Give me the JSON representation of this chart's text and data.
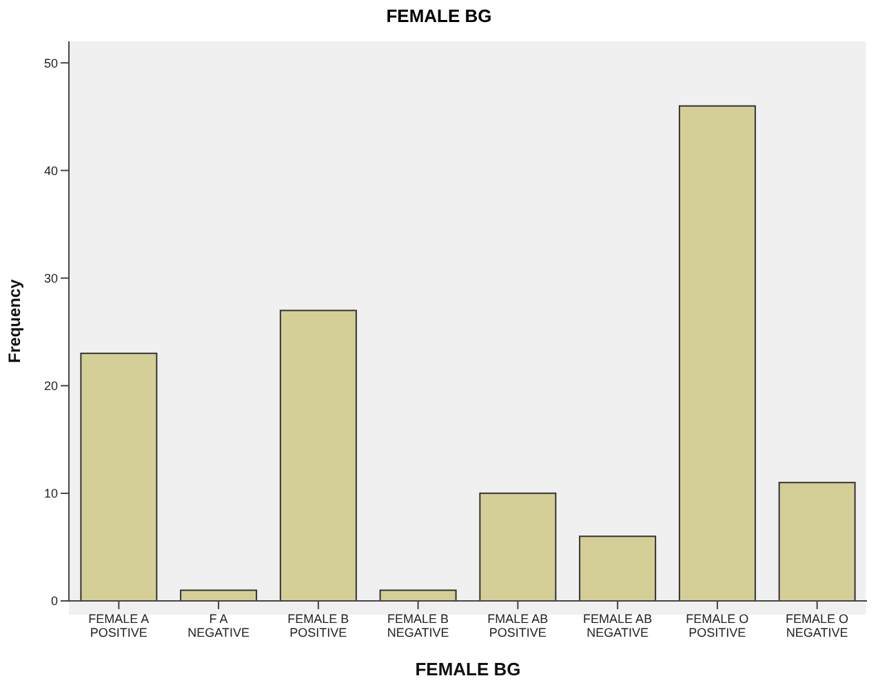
{
  "chart_data": {
    "type": "bar",
    "title": "FEMALE BG",
    "xlabel": "FEMALE BG",
    "ylabel": "Frequency",
    "categories": [
      "FEMALE A POSITIVE",
      "F A NEGATIVE",
      "FEMALE B POSITIVE",
      "FEMALE B NEGATIVE",
      "FMALE AB POSITIVE",
      "FEMALE AB NEGATIVE",
      "FEMALE O POSITIVE",
      "FEMALE O NEGATIVE"
    ],
    "values": [
      23,
      1,
      27,
      1,
      10,
      6,
      46,
      11
    ],
    "color": "#d4cf97",
    "ylim": [
      0,
      52
    ],
    "yticks": [
      0,
      10,
      20,
      30,
      40,
      50
    ],
    "grid": false
  }
}
